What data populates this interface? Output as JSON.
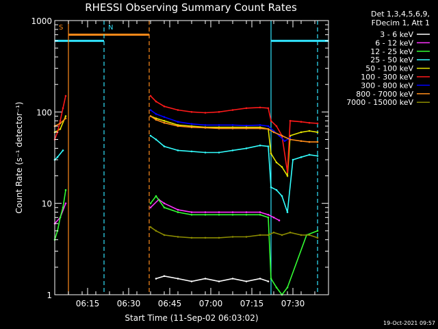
{
  "chart_data": {
    "type": "line",
    "title": "RHESSI Observing Summary Count Rates",
    "xlabel": "Start Time (11-Sep-02 06:03:02)",
    "ylabel": "Count Rate (s⁻¹ detector⁻¹)",
    "y_scale": "log",
    "ylim": [
      1,
      1000
    ],
    "xlim_minutes": [
      0,
      100
    ],
    "x_tick_labels": [
      "06:15",
      "06:30",
      "06:45",
      "07:00",
      "07:15",
      "07:30"
    ],
    "x_tick_minutes": [
      12,
      27,
      42,
      57,
      72,
      87
    ],
    "y_tick_labels": [
      "1",
      "10",
      "100",
      "1000"
    ],
    "y_tick_values": [
      1,
      10,
      100,
      1000
    ],
    "legend_header": [
      "Det 1,3,4,5,6,9,",
      "FDecim 1, Att 1"
    ],
    "legend_placement": "right",
    "timestamp": "19-Oct-2021 09:57",
    "annotations": [
      {
        "text": "S",
        "color": "#ff8c1a",
        "x_minute": 1.5
      },
      {
        "text": "N",
        "color": "#33e6ff",
        "x_minute": 19.5
      }
    ],
    "vertical_lines": [
      {
        "x_minute": 5,
        "color": "#ff8c1a",
        "style": "solid"
      },
      {
        "x_minute": 18,
        "color": "#33e6ff",
        "style": "dashed"
      },
      {
        "x_minute": 34.5,
        "color": "#ff8c1a",
        "style": "dashed"
      },
      {
        "x_minute": 79,
        "color": "#33e6ff",
        "style": "solid"
      },
      {
        "x_minute": 96,
        "color": "#33e6ff",
        "style": "dashed"
      }
    ],
    "horizontal_bars": [
      {
        "color": "#ff8c1a",
        "y": 700,
        "x_range": [
          5,
          34.5
        ]
      },
      {
        "color": "#33e6ff",
        "y": 600,
        "x_range": [
          0,
          18
        ]
      },
      {
        "color": "#33e6ff",
        "y": 600,
        "x_range": [
          79,
          100
        ]
      }
    ],
    "series": [
      {
        "name": "3 - 6 keV",
        "color": "#ffffff",
        "points": [
          [
            37,
            1.5
          ],
          [
            40,
            1.6
          ],
          [
            45,
            1.5
          ],
          [
            50,
            1.4
          ],
          [
            55,
            1.5
          ],
          [
            60,
            1.4
          ],
          [
            65,
            1.5
          ],
          [
            70,
            1.4
          ],
          [
            75,
            1.5
          ],
          [
            78,
            1.4
          ]
        ]
      },
      {
        "name": "6 - 12 keV",
        "color": "#ff33ff",
        "points": [
          [
            0,
            6
          ],
          [
            2,
            7
          ],
          [
            4,
            10
          ],
          [
            35,
            9
          ],
          [
            38,
            11
          ],
          [
            40,
            10
          ],
          [
            45,
            8.5
          ],
          [
            50,
            8
          ],
          [
            55,
            8
          ],
          [
            60,
            8
          ],
          [
            65,
            8
          ],
          [
            70,
            8
          ],
          [
            75,
            8
          ],
          [
            78,
            7.5
          ],
          [
            80,
            7
          ],
          [
            82,
            6.5
          ]
        ]
      },
      {
        "name": "12 - 25 keV",
        "color": "#33ff33",
        "points": [
          [
            0,
            4
          ],
          [
            1,
            5
          ],
          [
            2,
            7
          ],
          [
            3,
            9
          ],
          [
            4,
            14
          ],
          [
            35,
            10
          ],
          [
            37,
            12
          ],
          [
            40,
            9
          ],
          [
            45,
            8
          ],
          [
            50,
            7.5
          ],
          [
            55,
            7.5
          ],
          [
            60,
            7.5
          ],
          [
            65,
            7.5
          ],
          [
            70,
            7.5
          ],
          [
            75,
            7.5
          ],
          [
            78,
            7
          ],
          [
            79,
            1.5
          ],
          [
            81,
            1.2
          ],
          [
            83,
            1
          ],
          [
            85,
            1.2
          ],
          [
            92,
            4.5
          ],
          [
            96,
            5
          ]
        ]
      },
      {
        "name": "25 - 50 keV",
        "color": "#33ffff",
        "points": [
          [
            0,
            30
          ],
          [
            1,
            32
          ],
          [
            3,
            38
          ],
          [
            35,
            55
          ],
          [
            37,
            50
          ],
          [
            40,
            42
          ],
          [
            45,
            38
          ],
          [
            50,
            37
          ],
          [
            55,
            36
          ],
          [
            60,
            36
          ],
          [
            65,
            38
          ],
          [
            70,
            40
          ],
          [
            75,
            43
          ],
          [
            78,
            42
          ],
          [
            79,
            15
          ],
          [
            81,
            14
          ],
          [
            83,
            12
          ],
          [
            85,
            8
          ],
          [
            87,
            30
          ],
          [
            90,
            32
          ],
          [
            93,
            34
          ],
          [
            96,
            33
          ]
        ]
      },
      {
        "name": "50 - 100 keV",
        "color": "#e6e600",
        "points": [
          [
            0,
            60
          ],
          [
            2,
            65
          ],
          [
            4,
            90
          ],
          [
            35,
            90
          ],
          [
            37,
            85
          ],
          [
            40,
            80
          ],
          [
            45,
            72
          ],
          [
            50,
            70
          ],
          [
            55,
            68
          ],
          [
            60,
            68
          ],
          [
            65,
            68
          ],
          [
            70,
            68
          ],
          [
            75,
            68
          ],
          [
            78,
            65
          ],
          [
            79,
            35
          ],
          [
            81,
            28
          ],
          [
            83,
            25
          ],
          [
            85,
            20
          ],
          [
            86,
            55
          ],
          [
            90,
            60
          ],
          [
            93,
            62
          ],
          [
            96,
            60
          ]
        ]
      },
      {
        "name": "100 - 300 keV",
        "color": "#ff1a1a",
        "points": [
          [
            0,
            50
          ],
          [
            1,
            60
          ],
          [
            2,
            80
          ],
          [
            3,
            110
          ],
          [
            4,
            150
          ],
          [
            35,
            150
          ],
          [
            37,
            130
          ],
          [
            40,
            115
          ],
          [
            45,
            105
          ],
          [
            50,
            100
          ],
          [
            55,
            98
          ],
          [
            60,
            100
          ],
          [
            65,
            105
          ],
          [
            70,
            110
          ],
          [
            75,
            112
          ],
          [
            78,
            110
          ],
          [
            79,
            80
          ],
          [
            81,
            70
          ],
          [
            83,
            55
          ],
          [
            85,
            22
          ],
          [
            86,
            80
          ],
          [
            90,
            78
          ],
          [
            93,
            76
          ],
          [
            96,
            75
          ]
        ]
      },
      {
        "name": "300 - 800 keV",
        "color": "#0000ff",
        "points": [
          [
            35,
            105
          ],
          [
            37,
            95
          ],
          [
            40,
            88
          ],
          [
            45,
            78
          ],
          [
            50,
            74
          ],
          [
            55,
            72
          ],
          [
            60,
            72
          ],
          [
            65,
            72
          ],
          [
            70,
            71
          ],
          [
            75,
            72
          ],
          [
            78,
            70
          ],
          [
            80,
            62
          ],
          [
            82,
            55
          ],
          [
            84,
            48
          ],
          [
            86,
            52
          ]
        ]
      },
      {
        "name": "800 - 7000 keV",
        "color": "#ff8c1a",
        "points": [
          [
            0,
            70
          ],
          [
            2,
            75
          ],
          [
            4,
            85
          ],
          [
            35,
            90
          ],
          [
            37,
            82
          ],
          [
            40,
            76
          ],
          [
            45,
            70
          ],
          [
            50,
            68
          ],
          [
            55,
            67
          ],
          [
            60,
            66
          ],
          [
            65,
            66
          ],
          [
            70,
            66
          ],
          [
            75,
            66
          ],
          [
            78,
            65
          ],
          [
            80,
            60
          ],
          [
            83,
            55
          ],
          [
            86,
            50
          ],
          [
            90,
            48
          ],
          [
            93,
            47
          ],
          [
            96,
            47
          ]
        ]
      },
      {
        "name": "7000 - 15000 keV",
        "color": "#8c8c00",
        "points": [
          [
            35,
            5.5
          ],
          [
            37,
            5
          ],
          [
            40,
            4.5
          ],
          [
            45,
            4.3
          ],
          [
            50,
            4.2
          ],
          [
            55,
            4.2
          ],
          [
            60,
            4.2
          ],
          [
            65,
            4.3
          ],
          [
            70,
            4.3
          ],
          [
            75,
            4.5
          ],
          [
            78,
            4.5
          ],
          [
            80,
            4.8
          ],
          [
            83,
            4.5
          ],
          [
            86,
            4.8
          ],
          [
            90,
            4.5
          ],
          [
            93,
            4.5
          ],
          [
            96,
            4.2
          ]
        ]
      }
    ]
  }
}
